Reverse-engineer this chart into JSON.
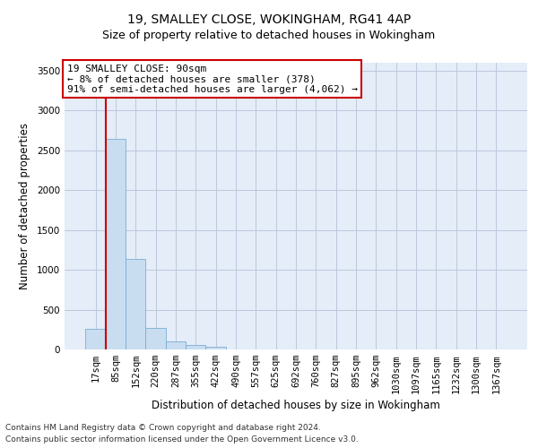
{
  "title_line1": "19, SMALLEY CLOSE, WOKINGHAM, RG41 4AP",
  "title_line2": "Size of property relative to detached houses in Wokingham",
  "xlabel": "Distribution of detached houses by size in Wokingham",
  "ylabel": "Number of detached properties",
  "annotation_line1": "19 SMALLEY CLOSE: 90sqm",
  "annotation_line2": "← 8% of detached houses are smaller (378)",
  "annotation_line3": "91% of semi-detached houses are larger (4,062) →",
  "footnote1": "Contains HM Land Registry data © Crown copyright and database right 2024.",
  "footnote2": "Contains public sector information licensed under the Open Government Licence v3.0.",
  "bar_labels": [
    "17sqm",
    "85sqm",
    "152sqm",
    "220sqm",
    "287sqm",
    "355sqm",
    "422sqm",
    "490sqm",
    "557sqm",
    "625sqm",
    "692sqm",
    "760sqm",
    "827sqm",
    "895sqm",
    "962sqm",
    "1030sqm",
    "1097sqm",
    "1165sqm",
    "1232sqm",
    "1300sqm",
    "1367sqm"
  ],
  "bar_values": [
    260,
    2640,
    1140,
    275,
    100,
    55,
    30,
    2,
    2,
    2,
    2,
    2,
    2,
    2,
    2,
    2,
    2,
    2,
    2,
    2,
    2
  ],
  "bar_color": "#c9ddf0",
  "bar_edge_color": "#7aaed4",
  "highlight_color": "#cc0000",
  "highlight_bar_index": 1,
  "ylim": [
    0,
    3600
  ],
  "yticks": [
    0,
    500,
    1000,
    1500,
    2000,
    2500,
    3000,
    3500
  ],
  "grid_color": "#bcc8dc",
  "bg_color": "#e4edf8",
  "annotation_box_color": "#ffffff",
  "annotation_box_edge": "#cc0000",
  "annotation_fontsize": 8.0,
  "title_fontsize1": 10,
  "title_fontsize2": 9,
  "xlabel_fontsize": 8.5,
  "ylabel_fontsize": 8.5,
  "tick_fontsize": 7.5,
  "footnote_fontsize": 6.5
}
